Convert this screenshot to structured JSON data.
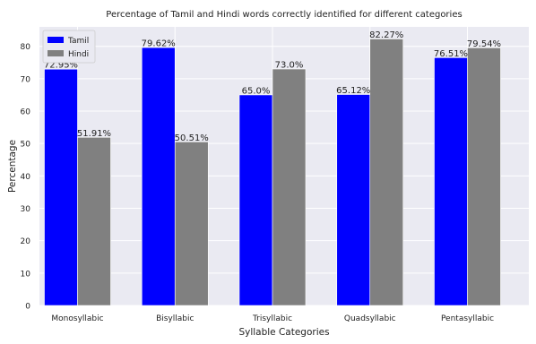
{
  "chart_data": {
    "type": "bar",
    "title": "Percentage of Tamil and Hindi words correctly identified for different categories",
    "xlabel": "Syllable Categories",
    "ylabel": "Percentage",
    "categories": [
      "Monosyllabic",
      "Bisyllabic",
      "Trisyllabic",
      "Quadsyllabic",
      "Pentasyllabic"
    ],
    "series": [
      {
        "name": "Tamil",
        "color": "#0000ff",
        "values": [
          72.95,
          79.62,
          65.0,
          65.12,
          76.51
        ],
        "labels": [
          "72.95%",
          "79.62%",
          "65.0%",
          "65.12%",
          "76.51%"
        ]
      },
      {
        "name": "Hindi",
        "color": "#808080",
        "values": [
          51.91,
          50.51,
          73.0,
          82.27,
          79.54
        ],
        "labels": [
          "51.91%",
          "50.51%",
          "73.0%",
          "82.27%",
          "79.54%"
        ]
      }
    ],
    "ylim": [
      0,
      86
    ],
    "yticks": [
      0,
      10,
      20,
      30,
      40,
      50,
      60,
      70,
      80
    ],
    "grid": true,
    "legend_position": "top-left",
    "background_color": "#eaeaf2",
    "grid_color": "#ffffff"
  }
}
